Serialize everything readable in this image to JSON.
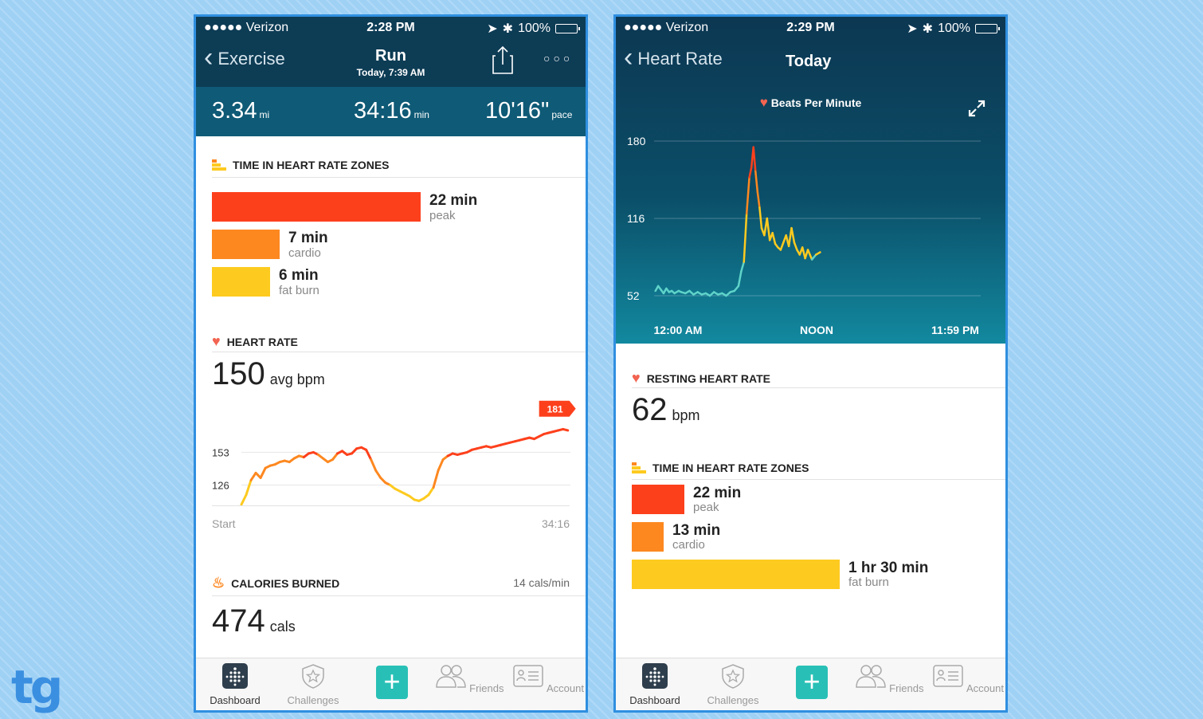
{
  "colors": {
    "background": "#9fd1f5",
    "header": "#0d3c55",
    "peak": "#fd401c",
    "cardio": "#fd8820",
    "fat_burn": "#fdca1f",
    "accent": "#28c0b6",
    "heart": "#f26451"
  },
  "logo_text": "tg",
  "exercise": {
    "status": {
      "carrier": "●●●●● Verizon",
      "time": "2:28 PM",
      "battery": "100%"
    },
    "nav": {
      "back_label": "Exercise",
      "title": "Run",
      "subtitle": "Today, 7:39 AM",
      "share_icon": "share-icon",
      "more_icon": "more-icon"
    },
    "stats": [
      {
        "value": "3.34",
        "unit": "mi"
      },
      {
        "value": "34:16",
        "unit": "min"
      },
      {
        "value": "10'16\"",
        "unit": "pace"
      }
    ],
    "zones": {
      "title": "TIME IN HEART RATE ZONES",
      "items": [
        {
          "value": "22 min",
          "label": "peak",
          "minutes": 22
        },
        {
          "value": "7 min",
          "label": "cardio",
          "minutes": 7
        },
        {
          "value": "6 min",
          "label": "fat burn",
          "minutes": 6
        }
      ]
    },
    "heart_rate": {
      "title": "HEART RATE",
      "value": "150",
      "unit": "avg bpm",
      "callout": "181",
      "start_label": "Start",
      "end_label": "34:16"
    },
    "calories": {
      "title": "CALORIES BURNED",
      "rate": "14 cals/min",
      "value": "474",
      "unit": "cals"
    }
  },
  "heart_rate_day": {
    "status": {
      "carrier": "●●●●● Verizon",
      "time": "2:29 PM",
      "battery": "100%"
    },
    "nav": {
      "back_label": "Heart Rate",
      "title": "Today"
    },
    "chart_legend": "Beats Per Minute",
    "resting": {
      "title": "RESTING HEART RATE",
      "value": "62",
      "unit": "bpm"
    },
    "zones": {
      "title": "TIME IN HEART RATE ZONES",
      "items": [
        {
          "value": "22 min",
          "label": "peak",
          "minutes": 22
        },
        {
          "value": "13 min",
          "label": "cardio",
          "minutes": 13
        },
        {
          "value": "1 hr 30 min",
          "label": "fat burn",
          "minutes": 90
        }
      ]
    }
  },
  "tabbar": {
    "items": [
      {
        "label": "Dashboard",
        "icon": "dashboard-icon"
      },
      {
        "label": "Challenges",
        "icon": "challenges-icon"
      },
      {
        "label": "",
        "icon": "plus-icon"
      },
      {
        "label": "Friends",
        "icon": "friends-icon"
      },
      {
        "label": "Account",
        "icon": "account-icon"
      }
    ]
  },
  "chart_data": [
    {
      "type": "line",
      "title": "",
      "xlabel": "",
      "ylabel": "",
      "x_labels": [
        "Start",
        "34:16"
      ],
      "y_ticks": [
        126,
        153
      ],
      "ylim": [
        108,
        190
      ],
      "xlim": [
        0,
        34.27
      ],
      "callout": {
        "x": 32.5,
        "y": 181,
        "label": "181"
      },
      "series": [
        {
          "x": [
            0,
            0.5,
            1,
            1.5,
            2,
            2.5,
            3,
            3.5,
            4,
            4.5,
            5,
            5.5,
            6,
            6.5,
            7,
            7.5,
            8,
            8.5,
            9,
            9.5,
            10,
            10.5,
            11,
            11.5,
            12,
            12.5,
            13,
            13.5,
            14,
            14.5,
            15,
            15.5,
            16,
            16.5,
            17,
            17.5,
            18,
            18.5,
            19,
            19.5,
            20,
            20.5,
            21,
            21.5,
            22,
            22.5,
            23,
            23.5,
            24,
            24.5,
            25,
            25.5,
            26,
            26.5,
            27,
            27.5,
            28,
            28.5,
            29,
            29.5,
            30,
            30.5,
            31,
            31.5,
            32,
            32.5,
            33,
            33.5,
            34
          ],
          "y": [
            110,
            118,
            130,
            136,
            132,
            140,
            142,
            143,
            145,
            146,
            145,
            148,
            150,
            149,
            152,
            153,
            151,
            148,
            145,
            147,
            152,
            154,
            151,
            152,
            156,
            157,
            155,
            147,
            138,
            132,
            128,
            126,
            123,
            121,
            119,
            117,
            114,
            113,
            115,
            118,
            124,
            138,
            147,
            150,
            152,
            151,
            152,
            153,
            155,
            156,
            157,
            158,
            157,
            158,
            159,
            160,
            161,
            162,
            163,
            164,
            165,
            164,
            166,
            168,
            169,
            170,
            171,
            172,
            171
          ]
        }
      ]
    },
    {
      "type": "line",
      "title": "",
      "legend": [
        "Beats Per Minute"
      ],
      "xlabel": "",
      "ylabel": "",
      "x_labels": [
        "12:00 AM",
        "NOON",
        "11:59 PM"
      ],
      "y_ticks": [
        52,
        116,
        180
      ],
      "ylim": [
        52,
        180
      ],
      "xlim": [
        0,
        24
      ],
      "series": [
        {
          "name": "Beats Per Minute",
          "x": [
            0.1,
            0.3,
            0.5,
            0.7,
            0.9,
            1.1,
            1.3,
            1.5,
            1.8,
            2.0,
            2.3,
            2.6,
            2.9,
            3.2,
            3.5,
            3.8,
            4.1,
            4.4,
            4.7,
            5.0,
            5.3,
            5.6,
            5.9,
            6.2,
            6.4,
            6.6,
            6.8,
            7.0,
            7.15,
            7.3,
            7.45,
            7.6,
            7.75,
            7.9,
            8.1,
            8.3,
            8.5,
            8.7,
            8.9,
            9.1,
            9.3,
            9.5,
            9.7,
            9.9,
            10.1,
            10.3,
            10.5,
            10.7,
            10.9,
            11.1,
            11.3,
            11.6,
            11.9,
            12.2
          ],
          "y": [
            56,
            60,
            57,
            54,
            58,
            55,
            56,
            54,
            56,
            55,
            54,
            56,
            53,
            55,
            53,
            54,
            52,
            55,
            53,
            54,
            52,
            55,
            56,
            60,
            72,
            80,
            120,
            150,
            158,
            175,
            155,
            138,
            125,
            108,
            102,
            116,
            98,
            104,
            95,
            92,
            90,
            96,
            102,
            93,
            108,
            96,
            90,
            86,
            92,
            83,
            90,
            82,
            86,
            88
          ]
        }
      ]
    }
  ]
}
